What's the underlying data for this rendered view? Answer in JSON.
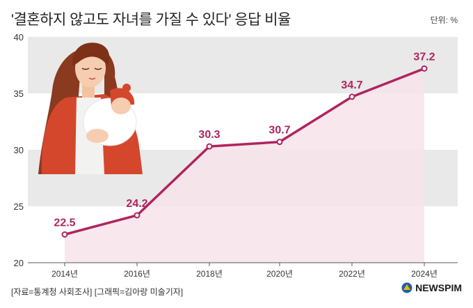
{
  "header": {
    "title": "'결혼하지 않고도 자녀를 가질 수 있다' 응답 비율",
    "unit": "단위: %"
  },
  "footer": {
    "source": "[자료=통계청 사회조사] [그래픽=김아랑 미술기자]",
    "logo_text": "NEWSPIM"
  },
  "colors": {
    "line": "#b0245e",
    "area": "#f7e3ea",
    "band": "#e9e9e9",
    "label": "#b0245e"
  },
  "chart_data": {
    "type": "area",
    "title": "'결혼하지 않고도 자녀를 가질 수 있다' 응답 비율",
    "xlabel": "",
    "ylabel": "단위: %",
    "ylim": [
      20,
      40
    ],
    "yticks": [
      20,
      25,
      30,
      35,
      40
    ],
    "categories": [
      "2014년",
      "2016년",
      "2018년",
      "2020년",
      "2022년",
      "2024년"
    ],
    "series": [
      {
        "name": "응답 비율",
        "values": [
          22.5,
          24.2,
          30.3,
          30.7,
          34.7,
          37.2
        ],
        "labels": [
          "22.5",
          "24.2",
          "30.3",
          "30.7",
          "34.7",
          "37.2"
        ]
      }
    ],
    "grid": "alternating-bands",
    "illustration": "mother-holding-baby"
  }
}
